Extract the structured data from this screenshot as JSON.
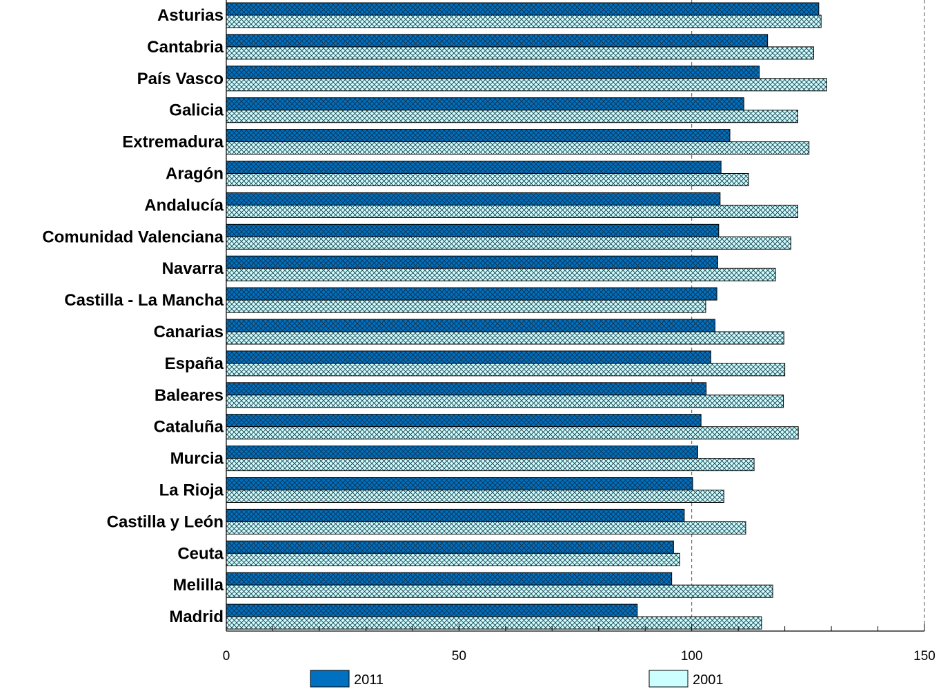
{
  "chart_data": {
    "type": "bar",
    "orientation": "horizontal",
    "categories": [
      "Asturias",
      "Cantabria",
      "País Vasco",
      "Galicia",
      "Extremadura",
      "Aragón",
      "Andalucía",
      "Comunidad Valenciana",
      "Navarra",
      "Castilla - La Mancha",
      "Canarias",
      "España",
      "Baleares",
      "Cataluña",
      "Murcia",
      "La Rioja",
      "Castilla y León",
      "Ceuta",
      "Melilla",
      "Madrid"
    ],
    "series": [
      {
        "name": "2011",
        "color": "#0070C0",
        "values": [
          127.3,
          116.3,
          114.5,
          111.2,
          108.2,
          106.3,
          106.1,
          105.8,
          105.6,
          105.4,
          105.0,
          104.1,
          103.1,
          102.0,
          101.3,
          100.2,
          98.4,
          96.1,
          95.7,
          88.3
        ]
      },
      {
        "name": "2001",
        "color": "#CCFFFF",
        "values": [
          127.8,
          126.2,
          129.0,
          122.8,
          125.2,
          112.2,
          122.8,
          121.3,
          118.0,
          103.0,
          119.8,
          120.0,
          119.7,
          122.9,
          113.4,
          106.9,
          111.6,
          97.4,
          117.4,
          115.0
        ]
      }
    ],
    "xlim": [
      0,
      150
    ],
    "xticks": [
      "0",
      "50",
      "100",
      "150"
    ],
    "reference_lines": [
      100,
      150
    ],
    "legend_position": "bottom",
    "grid": false
  }
}
